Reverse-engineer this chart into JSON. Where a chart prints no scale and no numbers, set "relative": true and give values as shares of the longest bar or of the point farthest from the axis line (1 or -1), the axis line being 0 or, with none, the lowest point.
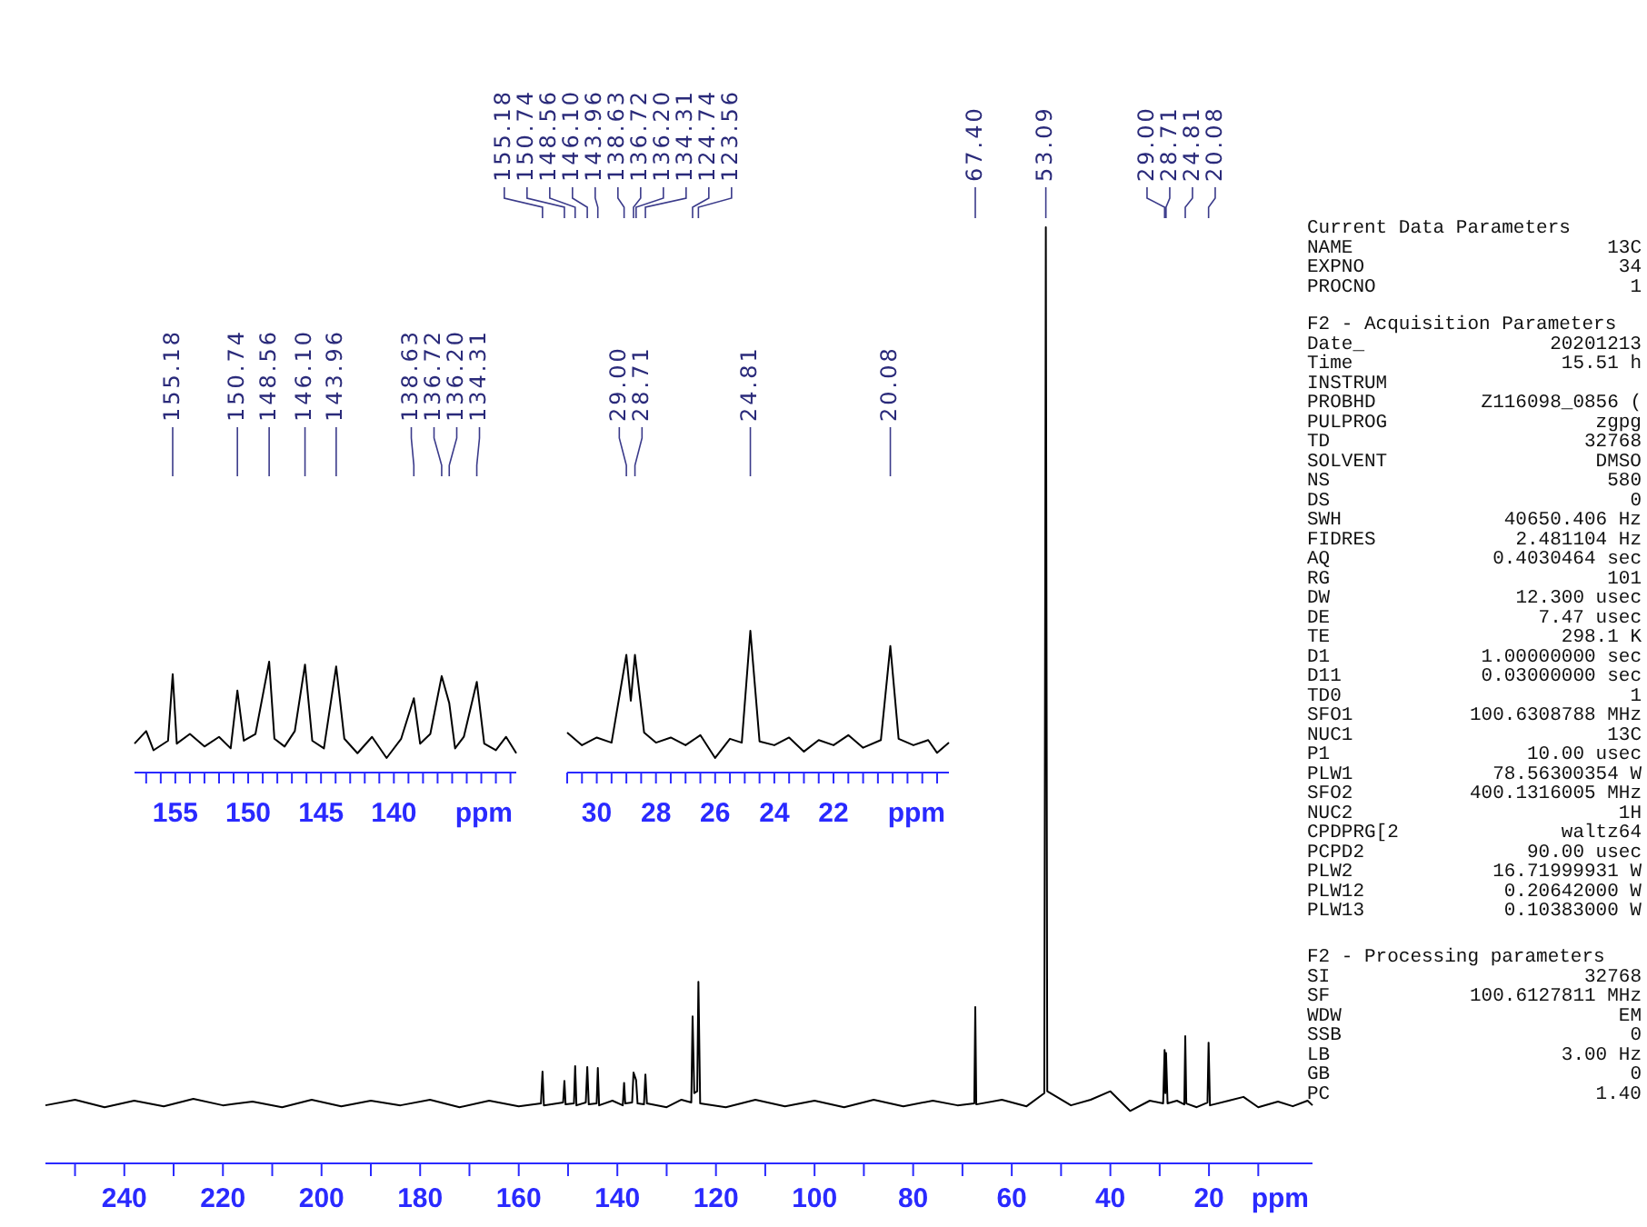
{
  "chart_data": [
    {
      "type": "line",
      "relative": true,
      "xlabel": "ppm",
      "xlim": [
        256,
        -1
      ],
      "xticks": [
        {
          "value": 250,
          "label": null
        },
        240,
        {
          "value": 230,
          "label": null
        },
        220,
        {
          "value": 210,
          "label": null
        },
        200,
        {
          "value": 190,
          "label": null
        },
        180,
        {
          "value": 170,
          "label": null
        },
        160,
        {
          "value": 150,
          "label": null
        },
        140,
        {
          "value": 130,
          "label": null
        },
        120,
        {
          "value": 110,
          "label": null
        },
        100,
        {
          "value": 90,
          "label": null
        },
        80,
        {
          "value": 70,
          "label": null
        },
        60,
        {
          "value": 50,
          "label": null
        },
        40,
        {
          "value": 30,
          "label": null
        },
        20,
        {
          "value": 10,
          "label": null
        }
      ],
      "series": [
        {
          "color": "#000000",
          "x": [
            256,
            250,
            244,
            238,
            232,
            226,
            220,
            214,
            208,
            202,
            196,
            190,
            184,
            178,
            172,
            166,
            160,
            155.5,
            155.18,
            154.9,
            151.0,
            150.74,
            150.5,
            148.8,
            148.56,
            148.3,
            146.4,
            146.1,
            145.8,
            144.2,
            143.96,
            143.7,
            141,
            138.9,
            138.63,
            138.4,
            137.0,
            136.72,
            136.2,
            135.9,
            134.6,
            134.31,
            134.0,
            130,
            127,
            125.0,
            124.74,
            124.4,
            123.8,
            123.56,
            123.2,
            118,
            112,
            106,
            100,
            94,
            88,
            82,
            76,
            71,
            67.6,
            67.4,
            67.2,
            62,
            57,
            53.4,
            53.09,
            52.8,
            48,
            44,
            40,
            36,
            32,
            29.3,
            29.0,
            28.85,
            28.71,
            28.4,
            26.5,
            25.0,
            24.81,
            24.6,
            22.5,
            20.3,
            20.08,
            19.8,
            16,
            13,
            10,
            6,
            3,
            0,
            -1
          ],
          "values": [
            0.062,
            0.068,
            0.06,
            0.067,
            0.061,
            0.069,
            0.062,
            0.066,
            0.06,
            0.068,
            0.061,
            0.067,
            0.062,
            0.068,
            0.06,
            0.067,
            0.061,
            0.064,
            0.098,
            0.062,
            0.065,
            0.088,
            0.063,
            0.064,
            0.104,
            0.062,
            0.065,
            0.103,
            0.063,
            0.064,
            0.102,
            0.062,
            0.067,
            0.062,
            0.086,
            0.064,
            0.065,
            0.097,
            0.089,
            0.064,
            0.063,
            0.095,
            0.064,
            0.06,
            0.068,
            0.065,
            0.157,
            0.075,
            0.077,
            0.194,
            0.064,
            0.06,
            0.068,
            0.061,
            0.067,
            0.06,
            0.068,
            0.061,
            0.067,
            0.062,
            0.064,
            0.167,
            0.063,
            0.068,
            0.061,
            0.075,
            1,
            0.077,
            0.062,
            0.068,
            0.077,
            0.056,
            0.067,
            0.064,
            0.121,
            0.075,
            0.118,
            0.064,
            0.067,
            0.063,
            0.136,
            0.064,
            0.06,
            0.065,
            0.129,
            0.062,
            0.067,
            0.071,
            0.06,
            0.066,
            0.061,
            0.067,
            0.062
          ]
        }
      ],
      "annotations": [
        {
          "text": "155.18",
          "x": 155.18
        },
        {
          "text": "150.74",
          "x": 150.74
        },
        {
          "text": "148.56",
          "x": 148.56
        },
        {
          "text": "146.10",
          "x": 146.1
        },
        {
          "text": "143.96",
          "x": 143.96
        },
        {
          "text": "138.63",
          "x": 138.63
        },
        {
          "text": "136.72",
          "x": 136.72
        },
        {
          "text": "136.20",
          "x": 136.2
        },
        {
          "text": "134.31",
          "x": 134.31
        },
        {
          "text": "124.74",
          "x": 124.74
        },
        {
          "text": "123.56",
          "x": 123.56
        },
        {
          "text": "67.40",
          "x": 67.4
        },
        {
          "text": "53.09",
          "x": 53.09
        },
        {
          "text": "29.00",
          "x": 29.0
        },
        {
          "text": "28.71",
          "x": 28.71
        },
        {
          "text": "24.81",
          "x": 24.81
        },
        {
          "text": "20.08",
          "x": 20.08
        }
      ]
    },
    {
      "type": "line",
      "relative": true,
      "xlabel": "ppm",
      "xlim": [
        157.8,
        131.6
      ],
      "xticks": [
        {
          "value": 157,
          "label": null
        },
        {
          "value": 156,
          "label": null
        },
        155,
        {
          "value": 154,
          "label": null
        },
        {
          "value": 153,
          "label": null
        },
        {
          "value": 152,
          "label": null
        },
        {
          "value": 151,
          "label": null
        },
        150,
        {
          "value": 149,
          "label": null
        },
        {
          "value": 148,
          "label": null
        },
        {
          "value": 147,
          "label": null
        },
        {
          "value": 146,
          "label": null
        },
        145,
        {
          "value": 144,
          "label": null
        },
        {
          "value": 143,
          "label": null
        },
        {
          "value": 142,
          "label": null
        },
        {
          "value": 141,
          "label": null
        },
        140,
        {
          "value": 139,
          "label": null
        },
        {
          "value": 138,
          "label": null
        },
        {
          "value": 137,
          "label": null
        },
        {
          "value": 136,
          "label": null
        },
        {
          "value": 135,
          "label": null
        },
        {
          "value": 134,
          "label": null
        },
        {
          "value": 133,
          "label": null
        },
        {
          "value": 132,
          "label": null
        }
      ],
      "series": [
        {
          "color": "#000000",
          "x": [
            157.8,
            157,
            156.5,
            155.5,
            155.18,
            154.9,
            154,
            153,
            152,
            151.2,
            150.74,
            150.3,
            149.5,
            148.56,
            148.2,
            147.5,
            146.8,
            146.1,
            145.6,
            144.8,
            143.96,
            143.4,
            142.5,
            141.5,
            140.5,
            139.5,
            138.63,
            138.2,
            137.5,
            136.72,
            136.2,
            135.8,
            135.2,
            134.31,
            133.8,
            133,
            132.3,
            131.6
          ],
          "values": [
            0.261,
            0.374,
            0.201,
            0.287,
            0.887,
            0.261,
            0.348,
            0.235,
            0.322,
            0.218,
            0.739,
            0.287,
            0.348,
            1,
            0.305,
            0.235,
            0.374,
            0.974,
            0.287,
            0.218,
            0.957,
            0.305,
            0.174,
            0.322,
            0.131,
            0.305,
            0.67,
            0.261,
            0.348,
            0.87,
            0.626,
            0.218,
            0.322,
            0.818,
            0.261,
            0.201,
            0.322,
            0.174
          ]
        }
      ],
      "annotations": [
        {
          "text": "155.18",
          "x": 155.18
        },
        {
          "text": "150.74",
          "x": 150.74
        },
        {
          "text": "148.56",
          "x": 148.56
        },
        {
          "text": "146.10",
          "x": 146.1
        },
        {
          "text": "143.96",
          "x": 143.96
        },
        {
          "text": "138.63",
          "x": 138.63
        },
        {
          "text": "136.72",
          "x": 136.72
        },
        {
          "text": "136.20",
          "x": 136.2
        },
        {
          "text": "134.31",
          "x": 134.31
        }
      ]
    },
    {
      "type": "line",
      "relative": true,
      "xlabel": "ppm",
      "xlim": [
        31,
        18.1
      ],
      "xticks": [
        {
          "value": 31,
          "label": null
        },
        {
          "value": 30.5,
          "label": null
        },
        30,
        {
          "value": 29.5,
          "label": null
        },
        {
          "value": 29,
          "label": null
        },
        {
          "value": 28.5,
          "label": null
        },
        28,
        {
          "value": 27.5,
          "label": null
        },
        {
          "value": 27,
          "label": null
        },
        {
          "value": 26.5,
          "label": null
        },
        26,
        {
          "value": 25.5,
          "label": null
        },
        {
          "value": 25,
          "label": null
        },
        {
          "value": 24.5,
          "label": null
        },
        24,
        {
          "value": 23.5,
          "label": null
        },
        {
          "value": 23,
          "label": null
        },
        {
          "value": 22.5,
          "label": null
        },
        22,
        {
          "value": 21.5,
          "label": null
        },
        {
          "value": 21,
          "label": null
        },
        {
          "value": 20.5,
          "label": null
        },
        {
          "value": 20,
          "label": null
        },
        {
          "value": 19.5,
          "label": null
        },
        {
          "value": 19,
          "label": null
        },
        {
          "value": 18.5,
          "label": null
        }
      ],
      "series": [
        {
          "color": "#000000",
          "x": [
            31,
            30.5,
            30,
            29.5,
            29.0,
            28.85,
            28.71,
            28.4,
            28,
            27.5,
            27,
            26.5,
            26,
            25.5,
            25.1,
            24.81,
            24.5,
            24,
            23.5,
            23,
            22.5,
            22,
            21.5,
            21,
            20.4,
            20.08,
            19.8,
            19.3,
            18.8,
            18.5,
            18.1
          ],
          "values": [
            0.282,
            0.193,
            0.247,
            0.211,
            0.83,
            0.507,
            0.83,
            0.282,
            0.211,
            0.247,
            0.193,
            0.264,
            0.103,
            0.238,
            0.211,
            1,
            0.22,
            0.193,
            0.247,
            0.148,
            0.229,
            0.193,
            0.264,
            0.175,
            0.229,
            0.892,
            0.238,
            0.193,
            0.229,
            0.139,
            0.211
          ]
        }
      ],
      "annotations": [
        {
          "text": "29.00",
          "x": 29.0
        },
        {
          "text": "28.71",
          "x": 28.71
        },
        {
          "text": "24.81",
          "x": 24.81
        },
        {
          "text": "20.08",
          "x": 20.08
        }
      ]
    },
    {
      "type": "other",
      "title": "Current Data Parameters",
      "categories": [
        "NAME",
        "EXPNO",
        "PROCNO"
      ],
      "value_labels": [
        "13C",
        "34",
        "1"
      ]
    },
    {
      "type": "other",
      "title": "F2 - Acquisition Parameters",
      "categories": [
        "Date_",
        "Time",
        "INSTRUM",
        "PROBHD",
        "PULPROG",
        "TD",
        "SOLVENT",
        "NS",
        "DS",
        "SWH",
        "FIDRES",
        "AQ",
        "RG",
        "DW",
        "DE",
        "TE",
        "D1",
        "D11",
        "TD0",
        "SFO1",
        "NUC1",
        "P1",
        "PLW1",
        "SFO2",
        "NUC2",
        "CPDPRG[2",
        "PCPD2",
        "PLW2",
        "PLW12",
        "PLW13"
      ],
      "value_labels": [
        "20201213",
        "15.51 h",
        null,
        "Z116098_0856 (",
        "zgpg",
        "32768",
        "DMSO",
        "580",
        "0",
        "40650.406 Hz",
        "2.481104 Hz",
        "0.4030464 sec",
        "101",
        "12.300 usec",
        "7.47 usec",
        "298.1 K",
        "1.00000000 sec",
        "0.03000000 sec",
        "1",
        "100.6308788 MHz",
        "13C",
        "10.00 usec",
        "78.56300354 W",
        "400.1316005 MHz",
        "1H",
        "waltz64",
        "90.00 usec",
        "16.71999931 W",
        "0.20642000 W",
        "0.10383000 W"
      ]
    },
    {
      "type": "other",
      "title": "F2 - Processing parameters",
      "categories": [
        "SI",
        "SF",
        "WDW",
        "SSB",
        "LB",
        "GB",
        "PC"
      ],
      "value_labels": [
        "32768",
        "100.6127811 MHz",
        "EM",
        "0",
        "3.00 Hz",
        "0",
        "1.40"
      ]
    }
  ]
}
